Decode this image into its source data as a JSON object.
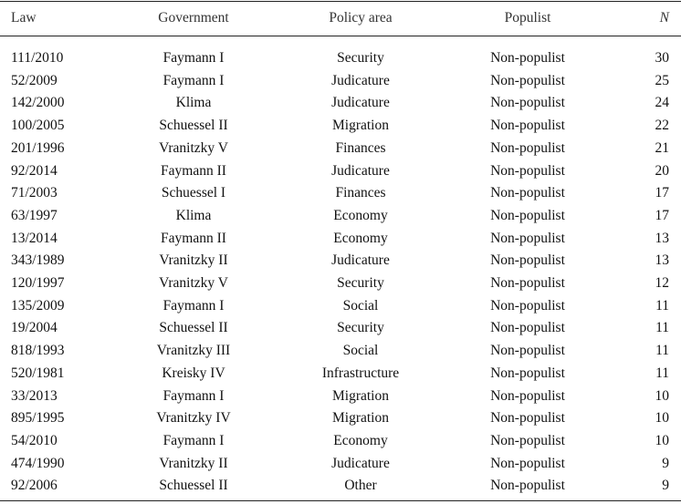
{
  "table": {
    "header": [
      "Law",
      "Government",
      "Policy area",
      "Populist",
      "N"
    ],
    "rows": [
      [
        "111/2010",
        "Faymann I",
        "Security",
        "Non-populist",
        30
      ],
      [
        "52/2009",
        "Faymann I",
        "Judicature",
        "Non-populist",
        25
      ],
      [
        "142/2000",
        "Klima",
        "Judicature",
        "Non-populist",
        24
      ],
      [
        "100/2005",
        "Schuessel II",
        "Migration",
        "Non-populist",
        22
      ],
      [
        "201/1996",
        "Vranitzky V",
        "Finances",
        "Non-populist",
        21
      ],
      [
        "92/2014",
        "Faymann II",
        "Judicature",
        "Non-populist",
        20
      ],
      [
        "71/2003",
        "Schuessel I",
        "Finances",
        "Non-populist",
        17
      ],
      [
        "63/1997",
        "Klima",
        "Economy",
        "Non-populist",
        17
      ],
      [
        "13/2014",
        "Faymann II",
        "Economy",
        "Non-populist",
        13
      ],
      [
        "343/1989",
        "Vranitzky II",
        "Judicature",
        "Non-populist",
        13
      ],
      [
        "120/1997",
        "Vranitzky V",
        "Security",
        "Non-populist",
        12
      ],
      [
        "135/2009",
        "Faymann I",
        "Social",
        "Non-populist",
        11
      ],
      [
        "19/2004",
        "Schuessel II",
        "Security",
        "Non-populist",
        11
      ],
      [
        "818/1993",
        "Vranitzky III",
        "Social",
        "Non-populist",
        11
      ],
      [
        "520/1981",
        "Kreisky IV",
        "Infrastructure",
        "Non-populist",
        11
      ],
      [
        "33/2013",
        "Faymann I",
        "Migration",
        "Non-populist",
        10
      ],
      [
        "895/1995",
        "Vranitzky IV",
        "Migration",
        "Non-populist",
        10
      ],
      [
        "54/2010",
        "Faymann I",
        "Economy",
        "Non-populist",
        10
      ],
      [
        "474/1990",
        "Vranitzky II",
        "Judicature",
        "Non-populist",
        9
      ],
      [
        "92/2006",
        "Schuessel II",
        "Other",
        "Non-populist",
        9
      ]
    ]
  }
}
